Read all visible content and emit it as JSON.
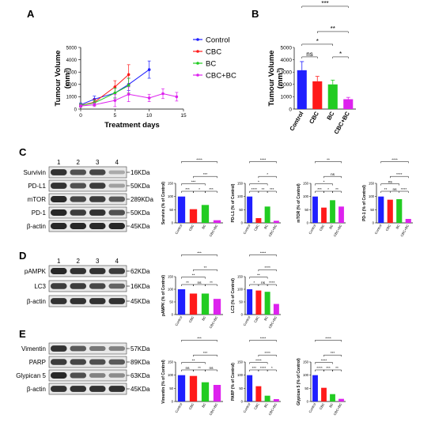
{
  "panels": {
    "A": "A",
    "B": "B",
    "C": "C",
    "D": "D",
    "E": "E"
  },
  "colors": {
    "Control": "#1f1fff",
    "CBC": "#ff1a1a",
    "BC": "#22cc22",
    "CBC+BC": "#dd22ee"
  },
  "lanes": [
    "1",
    "2",
    "3",
    "4"
  ],
  "chart_data": [
    {
      "id": "A",
      "type": "line",
      "xlabel": "Treatment days",
      "ylabel": "Tumour Volume\n(mm³)",
      "xlim": [
        0,
        15
      ],
      "ylim": [
        0,
        5000
      ],
      "xticks": [
        0,
        5,
        10,
        15
      ],
      "yticks": [
        0,
        1000,
        2000,
        3000,
        4000,
        5000
      ],
      "legend_position": "right",
      "series": [
        {
          "name": "Control",
          "x": [
            0,
            2,
            5,
            7,
            10
          ],
          "y": [
            350,
            800,
            1300,
            2000,
            3200
          ],
          "err": [
            150,
            250,
            400,
            500,
            700
          ]
        },
        {
          "name": "CBC",
          "x": [
            0,
            2,
            5,
            7
          ],
          "y": [
            300,
            550,
            1800,
            2800
          ],
          "err": [
            120,
            250,
            500,
            800
          ]
        },
        {
          "name": "BC",
          "x": [
            0,
            2,
            5,
            7
          ],
          "y": [
            300,
            500,
            1300,
            1900
          ],
          "err": [
            120,
            200,
            400,
            600
          ]
        },
        {
          "name": "CBC+BC",
          "x": [
            0,
            2,
            5,
            7,
            10,
            12,
            14
          ],
          "y": [
            250,
            350,
            700,
            1200,
            900,
            1250,
            1000
          ],
          "err": [
            100,
            150,
            500,
            600,
            300,
            400,
            350
          ]
        }
      ]
    },
    {
      "id": "B",
      "type": "bar",
      "ylabel": "Tumour Volume\n(mm³)",
      "ylim": [
        0,
        5000
      ],
      "yticks": [
        0,
        1000,
        2000,
        3000,
        4000,
        5000
      ],
      "categories": [
        "Control",
        "CBC",
        "BC",
        "CBC+BC"
      ],
      "values": [
        3150,
        2250,
        2000,
        800
      ],
      "err": [
        700,
        400,
        350,
        150
      ],
      "significance": [
        {
          "a": 0,
          "b": 1,
          "label": "ns"
        },
        {
          "a": 0,
          "b": 2,
          "label": "*"
        },
        {
          "a": 2,
          "b": 3,
          "label": "*"
        },
        {
          "a": 1,
          "b": 3,
          "label": "**"
        },
        {
          "a": 0,
          "b": 3,
          "label": "***"
        }
      ]
    }
  ],
  "blots": {
    "C": {
      "rows": [
        {
          "name": "Survivin",
          "kda": "16KDa",
          "intensity": [
            0.85,
            0.7,
            0.75,
            0.25
          ]
        },
        {
          "name": "PD-L1",
          "kda": "50KDa",
          "intensity": [
            0.85,
            0.7,
            0.8,
            0.3
          ]
        },
        {
          "name": "mTOR",
          "kda": "289KDa",
          "intensity": [
            0.9,
            0.75,
            0.8,
            0.65
          ]
        },
        {
          "name": "PD-1",
          "kda": "50KDa",
          "intensity": [
            0.9,
            0.8,
            0.85,
            0.7
          ]
        },
        {
          "name": "β-actin",
          "kda": "45KDa",
          "intensity": [
            0.9,
            0.9,
            0.9,
            0.9
          ]
        }
      ]
    },
    "D": {
      "rows": [
        {
          "name": "pAMPK",
          "kda": "62KDa",
          "intensity": [
            0.9,
            0.85,
            0.85,
            0.8
          ]
        },
        {
          "name": "LC3",
          "kda": "16KDa",
          "intensity": [
            0.8,
            0.8,
            0.75,
            0.6
          ]
        },
        {
          "name": "β-actin",
          "kda": "45KDa",
          "intensity": [
            0.85,
            0.85,
            0.85,
            0.85
          ]
        }
      ]
    },
    "E": {
      "rows": [
        {
          "name": "Vimentin",
          "kda": "57KDa",
          "intensity": [
            0.85,
            0.65,
            0.5,
            0.45
          ]
        },
        {
          "name": "PARP",
          "kda": "89KDa",
          "intensity": [
            0.8,
            0.75,
            0.7,
            0.65
          ]
        },
        {
          "name": "Glypican 5",
          "kda": "63KDa",
          "intensity": [
            0.9,
            0.7,
            0.45,
            0.4
          ]
        },
        {
          "name": "β-actin",
          "kda": "45KDa",
          "intensity": [
            0.85,
            0.85,
            0.85,
            0.85
          ]
        }
      ]
    }
  },
  "quant": {
    "categories": [
      "Control",
      "CBC",
      "BC",
      "CBC+BC"
    ],
    "ylim": [
      0,
      150
    ],
    "yticks": [
      0,
      50,
      100,
      150
    ],
    "C": [
      {
        "id": "survivin",
        "ylabel": "Survivin (% of Control)",
        "values": [
          100,
          52,
          68,
          10
        ],
        "sig": [
          {
            "a": 0,
            "b": 1,
            "label": "***"
          },
          {
            "a": 1,
            "b": 2,
            "label": "*"
          },
          {
            "a": 2,
            "b": 3,
            "label": "***"
          },
          {
            "a": 0,
            "b": 2,
            "label": "***"
          },
          {
            "a": 1,
            "b": 3,
            "label": "***"
          },
          {
            "a": 0,
            "b": 3,
            "label": "****"
          }
        ]
      },
      {
        "id": "pdl1",
        "ylabel": "PD-L1 (% of Control)",
        "values": [
          100,
          18,
          62,
          8
        ],
        "sig": [
          {
            "a": 0,
            "b": 1,
            "label": "****"
          },
          {
            "a": 1,
            "b": 2,
            "label": "**"
          },
          {
            "a": 2,
            "b": 3,
            "label": "***"
          },
          {
            "a": 0,
            "b": 2,
            "label": "*"
          },
          {
            "a": 1,
            "b": 3,
            "label": "*"
          },
          {
            "a": 0,
            "b": 3,
            "label": "****"
          }
        ]
      },
      {
        "id": "mtor",
        "ylabel": "mTOR (% of Control)",
        "values": [
          100,
          58,
          86,
          62
        ],
        "sig": [
          {
            "a": 0,
            "b": 1,
            "label": "***"
          },
          {
            "a": 1,
            "b": 2,
            "label": "*"
          },
          {
            "a": 2,
            "b": 3,
            "label": "**"
          },
          {
            "a": 0,
            "b": 2,
            "label": "*"
          },
          {
            "a": 1,
            "b": 3,
            "label": "ns"
          },
          {
            "a": 0,
            "b": 3,
            "label": "**"
          }
        ]
      },
      {
        "id": "pd1",
        "ylabel": "PD-1 (% of Control)",
        "values": [
          100,
          88,
          90,
          15
        ],
        "sig": [
          {
            "a": 0,
            "b": 1,
            "label": "**"
          },
          {
            "a": 1,
            "b": 2,
            "label": "ns"
          },
          {
            "a": 2,
            "b": 3,
            "label": "****"
          },
          {
            "a": 0,
            "b": 2,
            "label": "ns"
          },
          {
            "a": 1,
            "b": 3,
            "label": "****"
          },
          {
            "a": 0,
            "b": 3,
            "label": "****"
          }
        ]
      }
    ],
    "D": [
      {
        "id": "pampk",
        "ylabel": "pAMPK (% of Control)",
        "values": [
          100,
          83,
          83,
          62
        ],
        "sig": [
          {
            "a": 0,
            "b": 1,
            "label": "**"
          },
          {
            "a": 1,
            "b": 2,
            "label": "ns"
          },
          {
            "a": 2,
            "b": 3,
            "label": "**"
          },
          {
            "a": 0,
            "b": 2,
            "label": "**"
          },
          {
            "a": 1,
            "b": 3,
            "label": "**"
          },
          {
            "a": 0,
            "b": 3,
            "label": "***"
          }
        ]
      },
      {
        "id": "lc3",
        "ylabel": "LC3 (% of Control)",
        "values": [
          100,
          95,
          90,
          42
        ],
        "sig": [
          {
            "a": 0,
            "b": 1,
            "label": "*"
          },
          {
            "a": 1,
            "b": 2,
            "label": "ns"
          },
          {
            "a": 2,
            "b": 3,
            "label": "****"
          },
          {
            "a": 0,
            "b": 2,
            "label": "**"
          },
          {
            "a": 1,
            "b": 3,
            "label": "****"
          },
          {
            "a": 0,
            "b": 3,
            "label": "****"
          }
        ]
      }
    ],
    "E": [
      {
        "id": "vimentin",
        "ylabel": "Vimentin (% of Control)",
        "values": [
          100,
          97,
          73,
          63
        ],
        "sig": [
          {
            "a": 0,
            "b": 1,
            "label": "ns"
          },
          {
            "a": 1,
            "b": 2,
            "label": "**"
          },
          {
            "a": 2,
            "b": 3,
            "label": "ns"
          },
          {
            "a": 0,
            "b": 2,
            "label": "**"
          },
          {
            "a": 1,
            "b": 3,
            "label": "***"
          },
          {
            "a": 0,
            "b": 3,
            "label": "***"
          }
        ]
      },
      {
        "id": "parp",
        "ylabel": "PARP (% of Control)",
        "values": [
          100,
          58,
          22,
          9
        ],
        "sig": [
          {
            "a": 0,
            "b": 1,
            "label": "***"
          },
          {
            "a": 1,
            "b": 2,
            "label": "****"
          },
          {
            "a": 2,
            "b": 3,
            "label": "*"
          },
          {
            "a": 0,
            "b": 2,
            "label": "****"
          },
          {
            "a": 1,
            "b": 3,
            "label": "****"
          },
          {
            "a": 0,
            "b": 3,
            "label": "****"
          }
        ]
      },
      {
        "id": "glypican",
        "ylabel": "Glypican 5 (% of Control)",
        "values": [
          100,
          52,
          28,
          10
        ],
        "sig": [
          {
            "a": 0,
            "b": 1,
            "label": "****"
          },
          {
            "a": 1,
            "b": 2,
            "label": "***"
          },
          {
            "a": 2,
            "b": 3,
            "label": "**"
          },
          {
            "a": 0,
            "b": 2,
            "label": "****"
          },
          {
            "a": 1,
            "b": 3,
            "label": "***"
          },
          {
            "a": 0,
            "b": 3,
            "label": "****"
          }
        ]
      }
    ]
  }
}
